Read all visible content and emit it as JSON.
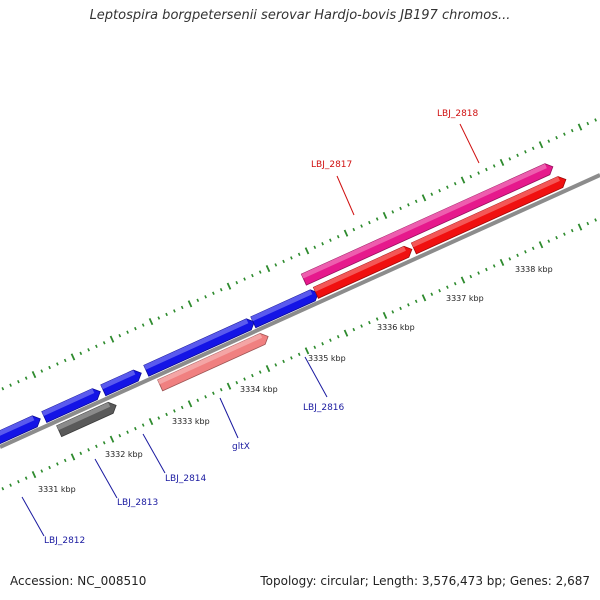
{
  "header": {
    "title": "Leptospira borgpetersenii serovar Hardjo-bovis JB197 chromos..."
  },
  "footer": {
    "accession": "Accession: NC_008510",
    "stats": "Topology: circular; Length: 3,576,473 bp; Genes: 2,687"
  },
  "colors": {
    "backbone": "#8c8c8c",
    "tick": "#2e8b2e",
    "cds_blue": "#1414e6",
    "cds_gray": "#5a5a5a",
    "cds_salmon": "#f08080",
    "cds_magenta": "#e6198c",
    "cds_red": "#f01010",
    "label_blue": "#1a1aa0",
    "label_red": "#d01010"
  },
  "scale_labels": [
    "3331 kbp",
    "3332 kbp",
    "3333 kbp",
    "3334 kbp",
    "3335 kbp",
    "3336 kbp",
    "3337 kbp",
    "3338 kbp"
  ],
  "genes": [
    {
      "label": "LBJ_2812",
      "color": "cds_blue",
      "label_color": "label_blue"
    },
    {
      "label": "LBJ_2813",
      "color": "cds_gray",
      "label_color": "label_blue"
    },
    {
      "label": "",
      "color": "cds_blue"
    },
    {
      "label": "LBJ_2814",
      "color": "cds_blue",
      "label_color": "label_blue"
    },
    {
      "label": "",
      "color": "cds_blue"
    },
    {
      "label": "gltX",
      "color": "cds_salmon",
      "label_color": "label_blue"
    },
    {
      "label": "LBJ_2816",
      "color": "cds_blue",
      "label_color": "label_blue"
    },
    {
      "label": "LBJ_2817",
      "color": "cds_magenta",
      "label_color": "label_red"
    },
    {
      "label": "",
      "color": "cds_red"
    },
    {
      "label": "LBJ_2818",
      "color": "cds_red",
      "label_color": "label_red"
    }
  ]
}
